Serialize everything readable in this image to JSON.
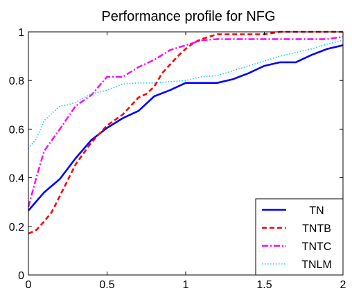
{
  "chart_data": {
    "type": "line",
    "title": "Performance profile for NFG",
    "xlabel": "",
    "ylabel": "",
    "xlim": [
      0,
      2
    ],
    "ylim": [
      0,
      1
    ],
    "x_ticks": [
      "0",
      "0.5",
      "1",
      "1.5",
      "2"
    ],
    "y_ticks": [
      "0",
      "0.2",
      "0.4",
      "0.6",
      "0.8",
      "1"
    ],
    "grid": false,
    "legend_position": "bottom-right",
    "series": [
      {
        "name": "TN",
        "color": "#0000ff",
        "style": "solid",
        "points": [
          [
            0,
            0.265
          ],
          [
            0.1,
            0.34
          ],
          [
            0.2,
            0.395
          ],
          [
            0.3,
            0.48
          ],
          [
            0.4,
            0.555
          ],
          [
            0.5,
            0.605
          ],
          [
            0.6,
            0.645
          ],
          [
            0.7,
            0.675
          ],
          [
            0.8,
            0.735
          ],
          [
            0.9,
            0.76
          ],
          [
            1.0,
            0.79
          ],
          [
            1.1,
            0.79
          ],
          [
            1.2,
            0.79
          ],
          [
            1.3,
            0.805
          ],
          [
            1.4,
            0.83
          ],
          [
            1.5,
            0.86
          ],
          [
            1.6,
            0.875
          ],
          [
            1.7,
            0.875
          ],
          [
            1.8,
            0.905
          ],
          [
            1.9,
            0.93
          ],
          [
            2.0,
            0.945
          ]
        ]
      },
      {
        "name": "TNTB",
        "color": "#ff0000",
        "style": "dashed",
        "points": [
          [
            0,
            0.17
          ],
          [
            0.05,
            0.185
          ],
          [
            0.1,
            0.22
          ],
          [
            0.15,
            0.26
          ],
          [
            0.2,
            0.325
          ],
          [
            0.3,
            0.455
          ],
          [
            0.4,
            0.545
          ],
          [
            0.5,
            0.615
          ],
          [
            0.6,
            0.66
          ],
          [
            0.7,
            0.73
          ],
          [
            0.75,
            0.745
          ],
          [
            0.8,
            0.775
          ],
          [
            0.85,
            0.83
          ],
          [
            0.95,
            0.9
          ],
          [
            1.0,
            0.93
          ],
          [
            1.05,
            0.955
          ],
          [
            1.1,
            0.97
          ],
          [
            1.2,
            0.99
          ],
          [
            1.3,
            0.99
          ],
          [
            1.5,
            0.99
          ],
          [
            1.6,
            1.0
          ],
          [
            2.0,
            1.0
          ]
        ]
      },
      {
        "name": "TNTC",
        "color": "#ff00ff",
        "style": "dashdot",
        "points": [
          [
            0,
            0.28
          ],
          [
            0.05,
            0.4
          ],
          [
            0.1,
            0.51
          ],
          [
            0.2,
            0.6
          ],
          [
            0.3,
            0.695
          ],
          [
            0.4,
            0.74
          ],
          [
            0.5,
            0.815
          ],
          [
            0.6,
            0.815
          ],
          [
            0.7,
            0.855
          ],
          [
            0.8,
            0.885
          ],
          [
            0.9,
            0.925
          ],
          [
            1.0,
            0.945
          ],
          [
            1.1,
            0.965
          ],
          [
            1.2,
            0.97
          ],
          [
            1.5,
            0.97
          ],
          [
            1.6,
            0.97
          ],
          [
            1.9,
            0.97
          ],
          [
            2.0,
            0.98
          ]
        ]
      },
      {
        "name": "TNLM",
        "color": "#00ccff",
        "style": "dotted",
        "points": [
          [
            0,
            0.52
          ],
          [
            0.05,
            0.56
          ],
          [
            0.1,
            0.635
          ],
          [
            0.2,
            0.695
          ],
          [
            0.25,
            0.7
          ],
          [
            0.3,
            0.71
          ],
          [
            0.4,
            0.745
          ],
          [
            0.5,
            0.76
          ],
          [
            0.6,
            0.785
          ],
          [
            0.7,
            0.79
          ],
          [
            0.8,
            0.79
          ],
          [
            1.0,
            0.8
          ],
          [
            1.1,
            0.815
          ],
          [
            1.2,
            0.82
          ],
          [
            1.3,
            0.84
          ],
          [
            1.4,
            0.86
          ],
          [
            1.5,
            0.88
          ],
          [
            1.6,
            0.9
          ],
          [
            1.7,
            0.915
          ],
          [
            1.8,
            0.93
          ],
          [
            1.9,
            0.95
          ],
          [
            2.0,
            0.965
          ]
        ]
      }
    ]
  }
}
